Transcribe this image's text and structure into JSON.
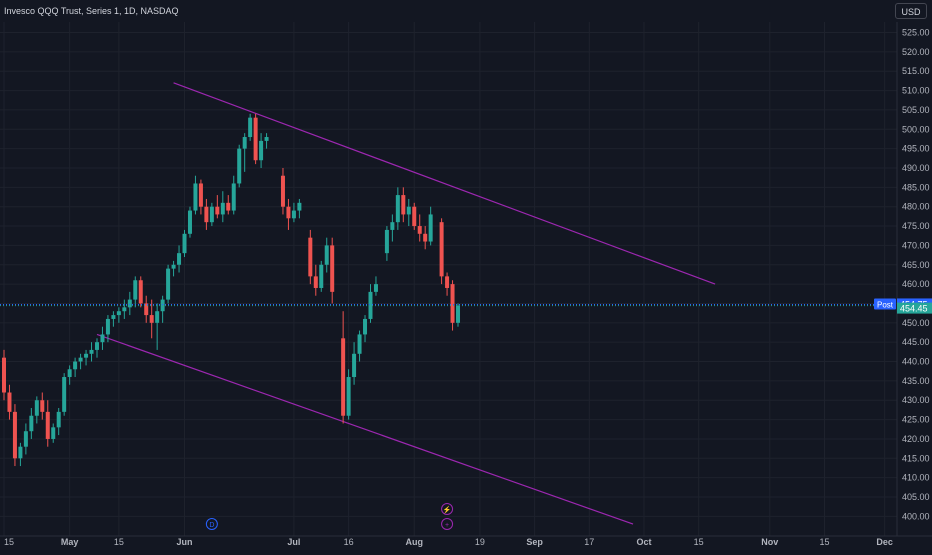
{
  "header": {
    "title": "Invesco QQQ Trust, Series 1, 1D, NASDAQ",
    "currency": "USD"
  },
  "colors": {
    "background": "#131722",
    "grid": "#1e222d",
    "up": "#26a69a",
    "down": "#ef5350",
    "channel": "#9c27b0",
    "post_badge": "#2962ff",
    "price_badge": "#26a69a",
    "axis_text": "#b2b5be"
  },
  "chart_data": {
    "type": "candlestick",
    "title": "Invesco QQQ Trust, Series 1, 1D, NASDAQ",
    "currency": "USD",
    "ylim": [
      397,
      528
    ],
    "y_ticks": [
      400,
      405,
      410,
      415,
      420,
      425,
      430,
      435,
      440,
      445,
      450,
      455,
      460,
      465,
      470,
      475,
      480,
      485,
      490,
      495,
      500,
      505,
      510,
      515,
      520,
      525
    ],
    "x_ticks": [
      {
        "label": "15",
        "index": 0
      },
      {
        "label": "May",
        "index": 12
      },
      {
        "label": "15",
        "index": 21
      },
      {
        "label": "Jun",
        "index": 33
      },
      {
        "label": "Jul",
        "index": 53
      },
      {
        "label": "16",
        "index": 63
      },
      {
        "label": "Aug",
        "index": 75
      },
      {
        "label": "19",
        "index": 87
      },
      {
        "label": "Sep",
        "index": 97
      },
      {
        "label": "17",
        "index": 107
      },
      {
        "label": "Oct",
        "index": 117
      },
      {
        "label": "15",
        "index": 127
      },
      {
        "label": "Nov",
        "index": 140
      },
      {
        "label": "15",
        "index": 150
      },
      {
        "label": "Dec",
        "index": 161
      }
    ],
    "candles": [
      [
        441,
        443,
        430,
        432
      ],
      [
        432,
        434,
        425,
        427
      ],
      [
        427,
        429,
        413,
        415
      ],
      [
        415,
        419,
        413,
        418
      ],
      [
        418,
        424,
        416,
        422
      ],
      [
        422,
        428,
        420,
        426
      ],
      [
        426,
        431,
        424,
        430
      ],
      [
        430,
        432,
        425,
        427
      ],
      [
        427,
        430,
        418,
        420
      ],
      [
        420,
        424,
        419,
        423
      ],
      [
        423,
        428,
        421,
        427
      ],
      [
        427,
        437,
        426,
        436
      ],
      [
        436,
        439,
        434,
        438
      ],
      [
        438,
        441,
        436,
        440
      ],
      [
        440,
        442,
        438,
        441
      ],
      [
        441,
        443,
        439,
        442
      ],
      [
        442,
        445,
        440,
        443
      ],
      [
        443,
        446,
        441,
        445
      ],
      [
        445,
        449,
        443,
        447
      ],
      [
        447,
        452,
        445,
        451
      ],
      [
        451,
        453,
        449,
        452
      ],
      [
        452,
        454,
        450,
        453
      ],
      [
        453,
        456,
        451,
        454
      ],
      [
        454,
        458,
        452,
        456
      ],
      [
        456,
        462,
        454,
        461
      ],
      [
        461,
        462,
        454,
        455
      ],
      [
        455,
        457,
        450,
        452
      ],
      [
        452,
        456,
        446,
        450
      ],
      [
        450,
        455,
        443,
        453
      ],
      [
        453,
        457,
        450,
        456
      ],
      [
        456,
        465,
        455,
        464
      ],
      [
        464,
        466,
        462,
        465
      ],
      [
        465,
        470,
        463,
        468
      ],
      [
        468,
        474,
        467,
        473
      ],
      [
        473,
        480,
        472,
        479
      ],
      [
        479,
        488,
        478,
        486
      ],
      [
        486,
        487,
        478,
        480
      ],
      [
        480,
        482,
        474,
        476
      ],
      [
        476,
        481,
        475,
        480
      ],
      [
        480,
        483,
        477,
        478
      ],
      [
        478,
        484,
        476,
        481
      ],
      [
        481,
        483,
        478,
        479
      ],
      [
        479,
        488,
        478,
        486
      ],
      [
        486,
        496,
        485,
        495
      ],
      [
        495,
        499,
        489,
        498
      ],
      [
        498,
        504,
        497,
        503
      ],
      [
        503,
        504,
        491,
        492
      ],
      [
        492,
        499,
        490,
        497
      ],
      [
        497,
        499,
        495,
        498
      ],
      [
        488,
        490,
        478,
        480
      ],
      [
        480,
        482,
        474,
        477
      ],
      [
        477,
        481,
        476,
        479
      ],
      [
        479,
        482,
        477,
        481
      ],
      [
        472,
        474,
        460,
        462
      ],
      [
        462,
        465,
        457,
        459
      ],
      [
        459,
        466,
        458,
        465
      ],
      [
        465,
        472,
        463,
        470
      ],
      [
        470,
        472,
        455,
        458
      ],
      [
        446,
        453,
        424,
        426
      ],
      [
        426,
        438,
        425,
        436
      ],
      [
        436,
        445,
        434,
        442
      ],
      [
        442,
        448,
        440,
        447
      ],
      [
        447,
        452,
        445,
        451
      ],
      [
        451,
        460,
        450,
        458
      ],
      [
        458,
        462,
        457,
        460
      ],
      [
        468,
        475,
        466,
        474
      ],
      [
        474,
        478,
        471,
        476
      ],
      [
        476,
        485,
        474,
        483
      ],
      [
        483,
        485,
        476,
        478
      ],
      [
        478,
        482,
        475,
        480
      ],
      [
        480,
        481,
        474,
        475
      ],
      [
        475,
        478,
        471,
        473
      ],
      [
        473,
        475,
        469,
        471
      ],
      [
        471,
        480,
        470,
        478
      ],
      [
        476,
        477,
        460,
        462
      ],
      [
        462,
        463,
        457,
        459
      ],
      [
        460,
        461,
        448,
        450
      ],
      [
        450,
        455,
        449,
        454.45
      ]
    ],
    "candle_x_index": [
      0,
      1,
      2,
      3,
      4,
      5,
      6,
      7,
      8,
      9,
      10,
      11,
      12,
      13,
      14,
      15,
      16,
      17,
      18,
      19,
      20,
      21,
      22,
      23,
      24,
      25,
      26,
      27,
      28,
      29,
      30,
      31,
      32,
      33,
      34,
      35,
      36,
      37,
      38,
      39,
      40,
      41,
      42,
      43,
      44,
      45,
      46,
      47,
      48,
      51,
      52,
      53,
      54,
      56,
      57,
      58,
      59,
      60,
      62,
      63,
      64,
      65,
      66,
      67,
      68,
      70,
      71,
      72,
      73,
      74,
      75,
      76,
      77,
      78,
      80,
      81,
      82,
      83
    ],
    "channel_lines": [
      {
        "from": {
          "index": 31,
          "price": 512
        },
        "to": {
          "index": 130,
          "price": 460
        }
      },
      {
        "from": {
          "index": 17,
          "price": 447
        },
        "to": {
          "index": 115,
          "price": 398
        }
      }
    ],
    "current_price": 454.45,
    "post_price": 454.75,
    "post_label": "Post",
    "last_price_label": "454.45",
    "post_price_label": "454.75",
    "events": [
      {
        "symbol": "D",
        "index": 38
      },
      {
        "symbol": "⚡",
        "index": 81
      },
      {
        "symbol": "+",
        "index": 81
      }
    ]
  }
}
